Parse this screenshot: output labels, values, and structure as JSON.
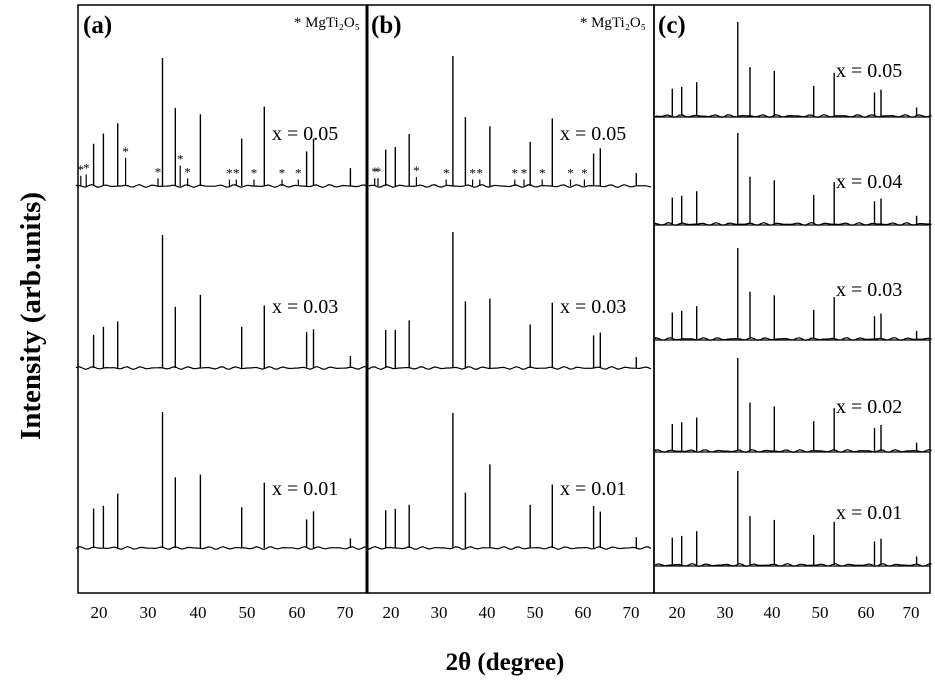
{
  "figure": {
    "ylabel": "Intensity (arb.units)",
    "xlabel": "2θ (degree)",
    "x_ticks": [
      "20",
      "30",
      "40",
      "50",
      "60",
      "70"
    ]
  },
  "chart_data": [
    {
      "type": "line",
      "panel_label": "(a)",
      "legend_text": "* MgTi₂O₅",
      "xlim": [
        15,
        75
      ],
      "x_ticks": [
        20,
        30,
        40,
        50,
        60,
        70
      ],
      "peaks_2theta": [
        18.9,
        20.9,
        23.8,
        32.9,
        35.5,
        40.6,
        49.0,
        53.6,
        62.2,
        63.6,
        71.1
      ],
      "impurity_marks_2theta": [
        16.3,
        17.4,
        25.4,
        32.0,
        36.5,
        38.0,
        46.5,
        47.9,
        51.5,
        57.2,
        60.5
      ],
      "series": [
        {
          "name": "x = 0.05",
          "label": "x = 0.05",
          "relative_intensity": [
            0.33,
            0.41,
            0.49,
            1.0,
            0.61,
            0.56,
            0.37,
            0.62,
            0.27,
            0.37,
            0.14
          ],
          "impurity_relative_intensity": [
            0.08,
            0.09,
            0.22,
            0.06,
            0.16,
            0.06,
            0.05,
            0.05,
            0.05,
            0.05,
            0.05
          ]
        },
        {
          "name": "x = 0.03",
          "label": "x = 0.03",
          "relative_intensity": [
            0.25,
            0.31,
            0.35,
            1.0,
            0.46,
            0.55,
            0.31,
            0.47,
            0.27,
            0.29,
            0.09
          ],
          "impurity_relative_intensity": []
        },
        {
          "name": "x = 0.01",
          "label": "x = 0.01",
          "relative_intensity": [
            0.29,
            0.31,
            0.4,
            1.0,
            0.52,
            0.54,
            0.3,
            0.48,
            0.21,
            0.27,
            0.07
          ],
          "impurity_relative_intensity": []
        }
      ]
    },
    {
      "type": "line",
      "panel_label": "(b)",
      "legend_text": "* MgTi₂O₅",
      "xlim": [
        15,
        75
      ],
      "x_ticks": [
        20,
        30,
        40,
        50,
        60,
        70
      ],
      "peaks_2theta": [
        18.9,
        20.9,
        23.8,
        32.9,
        35.5,
        40.6,
        49.0,
        53.6,
        62.2,
        63.6,
        71.1
      ],
      "impurity_marks_2theta": [
        16.6,
        17.3,
        25.3,
        31.5,
        37.0,
        38.5,
        45.8,
        47.7,
        51.5,
        57.4,
        60.3
      ],
      "series": [
        {
          "name": "x = 0.05",
          "label": "x = 0.05",
          "relative_intensity": [
            0.28,
            0.3,
            0.4,
            1.0,
            0.53,
            0.46,
            0.34,
            0.52,
            0.25,
            0.29,
            0.1
          ],
          "impurity_relative_intensity": [
            0.06,
            0.06,
            0.07,
            0.05,
            0.05,
            0.05,
            0.05,
            0.05,
            0.05,
            0.05,
            0.05
          ]
        },
        {
          "name": "x = 0.03",
          "label": "x = 0.03",
          "relative_intensity": [
            0.28,
            0.28,
            0.35,
            1.0,
            0.49,
            0.51,
            0.32,
            0.48,
            0.24,
            0.26,
            0.08
          ],
          "impurity_relative_intensity": []
        },
        {
          "name": "x = 0.01",
          "label": "x = 0.01",
          "relative_intensity": [
            0.28,
            0.29,
            0.32,
            1.0,
            0.41,
            0.62,
            0.32,
            0.47,
            0.31,
            0.27,
            0.08
          ],
          "impurity_relative_intensity": []
        }
      ]
    },
    {
      "type": "line",
      "panel_label": "(c)",
      "xlim": [
        15,
        75
      ],
      "x_ticks": [
        20,
        30,
        40,
        50,
        60,
        70
      ],
      "peaks_2theta": [
        19.0,
        21.0,
        24.2,
        33.0,
        35.6,
        40.8,
        49.2,
        53.6,
        62.2,
        63.6,
        71.2
      ],
      "series": [
        {
          "name": "x = 0.05",
          "label": "x = 0.05",
          "relative_intensity": [
            0.29,
            0.31,
            0.36,
            1.0,
            0.52,
            0.48,
            0.32,
            0.46,
            0.25,
            0.28,
            0.09
          ]
        },
        {
          "name": "x = 0.04",
          "label": "x = 0.04",
          "relative_intensity": [
            0.29,
            0.31,
            0.36,
            1.0,
            0.52,
            0.48,
            0.32,
            0.46,
            0.25,
            0.28,
            0.09
          ]
        },
        {
          "name": "x = 0.03",
          "label": "x = 0.03",
          "relative_intensity": [
            0.29,
            0.31,
            0.36,
            1.0,
            0.52,
            0.48,
            0.32,
            0.46,
            0.25,
            0.28,
            0.09
          ]
        },
        {
          "name": "x = 0.02",
          "label": "x = 0.02",
          "relative_intensity": [
            0.29,
            0.31,
            0.36,
            1.0,
            0.52,
            0.48,
            0.32,
            0.46,
            0.25,
            0.28,
            0.09
          ]
        },
        {
          "name": "x = 0.01",
          "label": "x = 0.01",
          "relative_intensity": [
            0.29,
            0.31,
            0.36,
            1.0,
            0.52,
            0.48,
            0.32,
            0.46,
            0.25,
            0.28,
            0.09
          ]
        }
      ]
    }
  ]
}
